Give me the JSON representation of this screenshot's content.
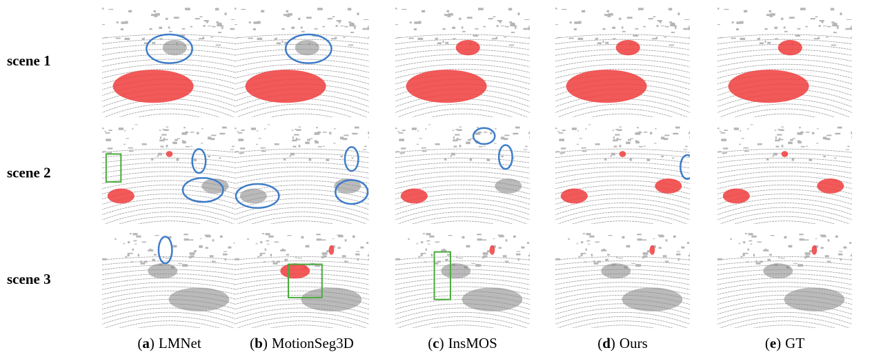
{
  "figure": {
    "rows": [
      "scene 1",
      "scene 2",
      "scene 3"
    ],
    "brackets": [
      "(",
      ")"
    ],
    "columns": [
      {
        "letter": "a",
        "name": "LMNet"
      },
      {
        "letter": "b",
        "name": "MotionSeg3D"
      },
      {
        "letter": "c",
        "name": "InsMOS"
      },
      {
        "letter": "d",
        "name": "Ours"
      },
      {
        "letter": "e",
        "name": "GT"
      }
    ]
  }
}
